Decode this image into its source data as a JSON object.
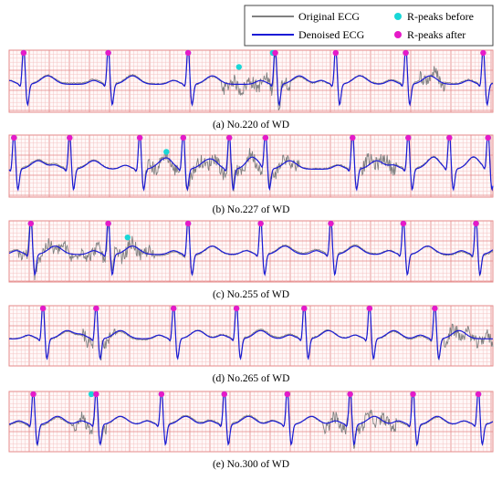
{
  "legend": {
    "items": [
      {
        "label": "Original ECG",
        "kind": "line",
        "color": "#808080"
      },
      {
        "label": "Denoised ECG",
        "kind": "line",
        "color": "#1b1bd6"
      },
      {
        "label": "R-peaks before",
        "kind": "marker",
        "color": "#19d7d7"
      },
      {
        "label": "R-peaks after",
        "kind": "marker",
        "color": "#e619c8"
      }
    ]
  },
  "colors": {
    "grid_minor": "#f4c4c4",
    "grid_major": "#e58a8a",
    "original": "#808080",
    "denoised": "#1b1bd6",
    "r_before": "#19d7d7",
    "r_after": "#e619c8"
  },
  "chart_data": [
    {
      "type": "line",
      "caption": "(a) No.220 of WD",
      "series": [
        {
          "name": "Original ECG"
        },
        {
          "name": "Denoised ECG"
        }
      ],
      "peak_polarity": "up",
      "r_peaks_after_x": [
        0.03,
        0.205,
        0.37,
        0.55,
        0.675,
        0.82,
        0.98
      ],
      "r_peaks_before_x": [
        0.03,
        0.205,
        0.37,
        0.475,
        0.545,
        0.82
      ],
      "noisy_segments": [
        [
          0.44,
          0.58
        ],
        [
          0.85,
          0.9
        ]
      ]
    },
    {
      "type": "line",
      "caption": "(b) No.227 of WD",
      "series": [
        {
          "name": "Original ECG"
        },
        {
          "name": "Denoised ECG"
        }
      ],
      "peak_polarity": "up",
      "r_peaks_after_x": [
        0.01,
        0.125,
        0.27,
        0.36,
        0.455,
        0.53,
        0.71,
        0.825,
        0.91,
        0.99
      ],
      "r_peaks_before_x": [
        0.01,
        0.125,
        0.27,
        0.36,
        0.455,
        0.53,
        0.71,
        0.825,
        0.91,
        0.99,
        0.325
      ],
      "noisy_segments": [
        [
          0.28,
          0.6
        ],
        [
          0.73,
          0.8
        ]
      ]
    },
    {
      "type": "line",
      "caption": "(c) No.255 of WD",
      "series": [
        {
          "name": "Original ECG"
        },
        {
          "name": "Denoised ECG"
        }
      ],
      "peak_polarity": "up",
      "r_peaks_after_x": [
        0.045,
        0.205,
        0.37,
        0.52,
        0.665,
        0.815,
        0.965
      ],
      "r_peaks_before_x": [
        0.045,
        0.205,
        0.245,
        0.37,
        0.52,
        0.665,
        0.815,
        0.965
      ],
      "noisy_segments": [
        [
          0.02,
          0.3
        ]
      ]
    },
    {
      "type": "line",
      "caption": "(d) No.265 of WD",
      "series": [
        {
          "name": "Original ECG"
        },
        {
          "name": "Denoised ECG"
        }
      ],
      "peak_polarity": "up",
      "r_peaks_after_x": [
        0.07,
        0.18,
        0.34,
        0.47,
        0.61,
        0.745,
        0.88
      ],
      "r_peaks_before_x": [
        0.07,
        0.18,
        0.34,
        0.47,
        0.61,
        0.745,
        0.88
      ],
      "noisy_segments": [
        [
          0.15,
          0.22
        ],
        [
          0.9,
          1.0
        ]
      ]
    },
    {
      "type": "line",
      "caption": "(e) No.300 of WD",
      "series": [
        {
          "name": "Original ECG"
        },
        {
          "name": "Denoised ECG"
        }
      ],
      "peak_polarity": "up",
      "r_peaks_after_x": [
        0.05,
        0.18,
        0.315,
        0.445,
        0.575,
        0.705,
        0.835,
        0.97
      ],
      "r_peaks_before_x": [
        0.05,
        0.17,
        0.315,
        0.445,
        0.575,
        0.705,
        0.835,
        0.97
      ],
      "noisy_segments": [
        [
          0.13,
          0.2
        ],
        [
          0.65,
          0.8
        ]
      ]
    }
  ]
}
